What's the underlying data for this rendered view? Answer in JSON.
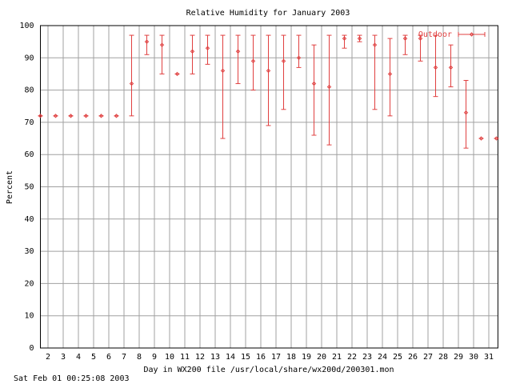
{
  "chart_data": {
    "type": "errorbar",
    "title": "Relative Humidity for January 2003",
    "x_label": "Day in WX200 file /usr/local/share/wx200d/200301.mon",
    "y_label": "Percent",
    "footer": "Sat Feb 01 00:25:08 2003",
    "xlim": [
      1.5,
      31.6
    ],
    "ylim": [
      0,
      100
    ],
    "xticks": [
      2,
      3,
      4,
      5,
      6,
      7,
      8,
      9,
      10,
      11,
      12,
      13,
      14,
      15,
      16,
      17,
      18,
      19,
      20,
      21,
      22,
      23,
      24,
      25,
      26,
      27,
      28,
      29,
      30,
      31
    ],
    "yticks": [
      0,
      10,
      20,
      30,
      40,
      50,
      60,
      70,
      80,
      90,
      100
    ],
    "grid": true,
    "legend_position": "upper right",
    "series": [
      {
        "name": "Outdoor",
        "color": "#e04040",
        "x": [
          1.5,
          2.5,
          3.5,
          4.5,
          5.5,
          6.5,
          7.5,
          8.5,
          9.5,
          10.5,
          11.5,
          12.5,
          13.5,
          14.5,
          15.5,
          16.5,
          17.5,
          18.5,
          19.5,
          20.5,
          21.5,
          22.5,
          23.5,
          24.5,
          25.5,
          26.5,
          27.5,
          28.5,
          29.5,
          30.5,
          31.5
        ],
        "values": [
          72,
          72,
          72,
          72,
          72,
          72,
          82,
          95,
          94,
          85,
          92,
          93,
          86,
          92,
          89,
          86,
          89,
          90,
          82,
          81,
          96,
          96,
          94,
          85,
          96,
          96,
          87,
          87,
          73,
          65,
          65
        ],
        "low": [
          72,
          72,
          72,
          72,
          72,
          72,
          72,
          91,
          85,
          85,
          85,
          88,
          65,
          82,
          80,
          69,
          74,
          87,
          66,
          63,
          93,
          95,
          74,
          72,
          91,
          89,
          78,
          81,
          62,
          65,
          65
        ],
        "high": [
          72,
          72,
          72,
          72,
          72,
          72,
          97,
          97,
          97,
          85,
          97,
          97,
          97,
          97,
          97,
          97,
          97,
          97,
          94,
          97,
          97,
          97,
          97,
          96,
          97,
          97,
          97,
          94,
          83,
          65,
          65
        ]
      }
    ]
  }
}
